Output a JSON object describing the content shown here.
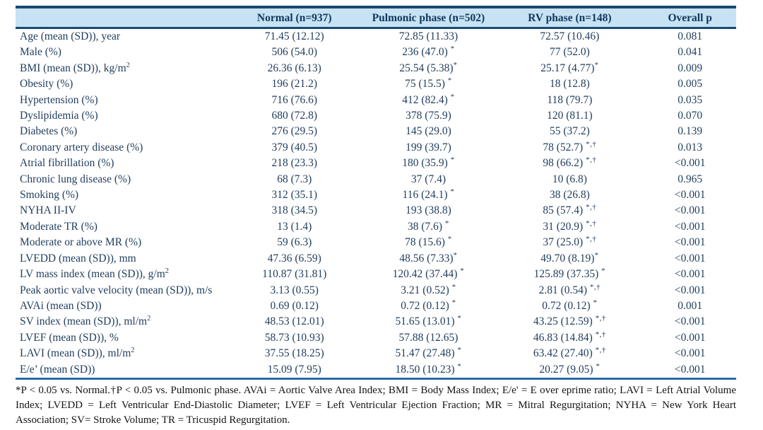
{
  "colors": {
    "header_bg": "#c7e2f3",
    "border_dark": "#1a4971",
    "border_bottom": "#2b6aa3",
    "table_text": "#223f5e",
    "header_text": "#10375c",
    "footnote_text": "#141414"
  },
  "table": {
    "columns": [
      "",
      "Normal (n=937)",
      "Pulmonic phase (n=502)",
      "RV phase (n=148)",
      "Overall p"
    ],
    "rows": [
      {
        "label": "Age (mean (SD)), year",
        "label_sup": "",
        "cells": [
          [
            "71.45 (12.12)",
            ""
          ],
          [
            "72.85 (11.33)",
            ""
          ],
          [
            "72.57 (10.46)",
            ""
          ],
          [
            "0.081",
            ""
          ]
        ]
      },
      {
        "label": "Male (%)",
        "label_sup": "",
        "cells": [
          [
            "506 (54.0)",
            ""
          ],
          [
            "236 (47.0) ",
            "*"
          ],
          [
            "77 (52.0)",
            ""
          ],
          [
            "0.041",
            ""
          ]
        ]
      },
      {
        "label": "BMI (mean (SD)), kg/m",
        "label_sup": "2",
        "cells": [
          [
            "26.36 (6.13)",
            ""
          ],
          [
            "25.54 (5.38)",
            "*"
          ],
          [
            "25.17 (4.77)",
            "*"
          ],
          [
            "0.009",
            ""
          ]
        ]
      },
      {
        "label": "Obesity (%)",
        "label_sup": "",
        "cells": [
          [
            "196 (21.2)",
            ""
          ],
          [
            "75 (15.5) ",
            "*"
          ],
          [
            "18 (12.8)",
            ""
          ],
          [
            "0.005",
            ""
          ]
        ]
      },
      {
        "label": "Hypertension (%)",
        "label_sup": "",
        "cells": [
          [
            "716 (76.6)",
            ""
          ],
          [
            "412 (82.4) ",
            "*"
          ],
          [
            "118 (79.7)",
            ""
          ],
          [
            "0.035",
            ""
          ]
        ]
      },
      {
        "label": "Dyslipidemia (%)",
        "label_sup": "",
        "cells": [
          [
            "680 (72.8)",
            ""
          ],
          [
            "378 (75.9)",
            ""
          ],
          [
            "120 (81.1)",
            ""
          ],
          [
            "0.070",
            ""
          ]
        ]
      },
      {
        "label": "Diabetes (%)",
        "label_sup": "",
        "cells": [
          [
            "276 (29.5)",
            ""
          ],
          [
            "145 (29.0)",
            ""
          ],
          [
            "55 (37.2)",
            ""
          ],
          [
            "0.139",
            ""
          ]
        ]
      },
      {
        "label": "Coronary artery disease  (%)",
        "label_sup": "",
        "cells": [
          [
            "379 (40.5)",
            ""
          ],
          [
            "199 (39.7)",
            ""
          ],
          [
            "78 (52.7) ",
            "*,†"
          ],
          [
            "0.013",
            ""
          ]
        ]
      },
      {
        "label": "Atrial fibrillation (%)",
        "label_sup": "",
        "cells": [
          [
            "218 (23.3)",
            ""
          ],
          [
            "180 (35.9) ",
            "*"
          ],
          [
            "98 (66.2) ",
            "*,†"
          ],
          [
            "<0.001",
            ""
          ]
        ]
      },
      {
        "label": "Chronic lung disease (%)",
        "label_sup": "",
        "cells": [
          [
            "68 (7.3)",
            ""
          ],
          [
            "37 (7.4)",
            ""
          ],
          [
            "10 (6.8)",
            ""
          ],
          [
            "0.965",
            ""
          ]
        ]
      },
      {
        "label": "Smoking (%)",
        "label_sup": "",
        "cells": [
          [
            "312 (35.1)",
            ""
          ],
          [
            "116 (24.1) ",
            "*"
          ],
          [
            "38 (26.8)",
            ""
          ],
          [
            "<0.001",
            ""
          ]
        ]
      },
      {
        "label": "NYHA II-IV",
        "label_sup": "",
        "cells": [
          [
            "318 (34.5)",
            ""
          ],
          [
            "193 (38.8)",
            ""
          ],
          [
            "85 (57.4) ",
            "*,†"
          ],
          [
            "<0.001",
            ""
          ]
        ]
      },
      {
        "label": "Moderate TR (%)",
        "label_sup": "",
        "cells": [
          [
            "13 (1.4)",
            ""
          ],
          [
            "38 (7.6) ",
            "*"
          ],
          [
            "31 (20.9) ",
            "*,†"
          ],
          [
            "<0.001",
            ""
          ]
        ]
      },
      {
        "label": "Moderate or above MR (%)",
        "label_sup": "",
        "cells": [
          [
            "59 (6.3)",
            ""
          ],
          [
            "78 (15.6) ",
            "*"
          ],
          [
            "37 (25.0) ",
            "*,†"
          ],
          [
            "<0.001",
            ""
          ]
        ]
      },
      {
        "label": "LVEDD (mean (SD)), mm",
        "label_sup": "",
        "cells": [
          [
            "47.36 (6.59)",
            ""
          ],
          [
            "48.56 (7.33)",
            "*"
          ],
          [
            "49.70 (8.19)",
            "*"
          ],
          [
            "<0.001",
            ""
          ]
        ]
      },
      {
        "label": "LV mass index (mean (SD)), g/m",
        "label_sup": "2",
        "cells": [
          [
            "110.87 (31.81)",
            ""
          ],
          [
            "120.42 (37.44) ",
            "*"
          ],
          [
            "125.89 (37.35) ",
            "*"
          ],
          [
            "<0.001",
            ""
          ]
        ]
      },
      {
        "label": "Peak aortic valve velocity (mean (SD)), m/s",
        "label_sup": "",
        "cells": [
          [
            "3.13 (0.55)",
            ""
          ],
          [
            "3.21 (0.52) ",
            "*"
          ],
          [
            "2.81 (0.54) ",
            "*,†"
          ],
          [
            "<0.001",
            ""
          ]
        ]
      },
      {
        "label": "AVAi (mean (SD))",
        "label_sup": "",
        "cells": [
          [
            "0.69 (0.12)",
            ""
          ],
          [
            "0.72 (0.12) ",
            "*"
          ],
          [
            "0.72 (0.12) ",
            "*"
          ],
          [
            "0.001",
            ""
          ]
        ]
      },
      {
        "label": "SV index (mean (SD)), ml/m",
        "label_sup": "2",
        "cells": [
          [
            "48.53 (12.01)",
            ""
          ],
          [
            "51.65 (13.01) ",
            "*"
          ],
          [
            "43.25 (12.59) ",
            "*,†"
          ],
          [
            "<0.001",
            ""
          ]
        ]
      },
      {
        "label": "LVEF (mean (SD)), %",
        "label_sup": "",
        "cells": [
          [
            "58.73 (10.93)",
            ""
          ],
          [
            "57.88 (12.65)",
            ""
          ],
          [
            "46.83 (14.84) ",
            "*,†"
          ],
          [
            "<0.001",
            ""
          ]
        ]
      },
      {
        "label": "LAVI (mean (SD)), ml/m",
        "label_sup": "2",
        "cells": [
          [
            "37.55 (18.25)",
            ""
          ],
          [
            "51.47 (27.48) ",
            "*"
          ],
          [
            "63.42 (27.40) ",
            "*,†"
          ],
          [
            "<0.001",
            ""
          ]
        ]
      },
      {
        "label": "E/e’ (mean (SD))",
        "label_sup": "",
        "cells": [
          [
            "15.09 (7.95)",
            ""
          ],
          [
            "18.50 (10.23) ",
            "*"
          ],
          [
            "20.27 (9.05) ",
            "*"
          ],
          [
            "<0.001",
            ""
          ]
        ]
      }
    ],
    "footnote": "*P < 0.05 vs. Normal.†P < 0.05 vs. Pulmonic phase. AVAi = Aortic Valve Area Index; BMI = Body Mass Index; E/e' = E over eprime ratio; LAVI = Left Atrial Volume Index; LVEDD = Left Ventricular End-Diastolic Diameter; LVEF = Left Ventricular Ejection Fraction; MR = Mitral Regurgitation; NYHA = New York Heart Association; SV= Stroke Volume; TR = Tricuspid Regurgitation."
  }
}
